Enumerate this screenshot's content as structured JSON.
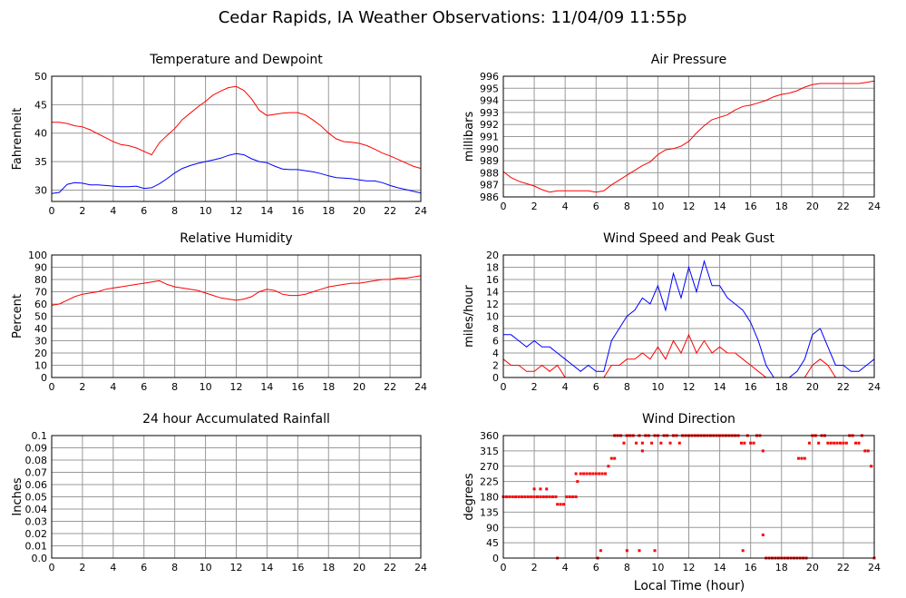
{
  "title": "Cedar Rapids, IA Weather Observations: 11/04/09 11:55p",
  "colors": {
    "red": "#ff0000",
    "blue": "#0000ff",
    "grid": "#999999",
    "frame": "#000000"
  },
  "x_axis_label": "Local Time (hour)",
  "chart_data": [
    {
      "id": "temp",
      "type": "line",
      "title": "Temperature and Dewpoint",
      "xlabel": "",
      "ylabel": "Fahrenheit",
      "xlim": [
        0,
        24
      ],
      "ylim": [
        28,
        50
      ],
      "xticks": [
        0,
        2,
        4,
        6,
        8,
        10,
        12,
        14,
        16,
        18,
        20,
        22,
        24
      ],
      "yticks": [
        30,
        35,
        40,
        45,
        50
      ],
      "series": [
        {
          "color": "#ff0000",
          "x": [
            0,
            0.5,
            1,
            1.5,
            2,
            2.5,
            3,
            3.5,
            4,
            4.5,
            5,
            5.5,
            6,
            6.5,
            7,
            7.5,
            8,
            8.5,
            9,
            9.5,
            10,
            10.5,
            11,
            11.5,
            12,
            12.5,
            13,
            13.5,
            14,
            14.5,
            15,
            15.5,
            16,
            16.5,
            17,
            17.5,
            18,
            18.5,
            19,
            19.5,
            20,
            20.5,
            21,
            21.5,
            22,
            22.5,
            23,
            23.5,
            24
          ],
          "y": [
            41.9,
            41.9,
            41.7,
            41.3,
            41.1,
            40.6,
            39.9,
            39.2,
            38.5,
            38.0,
            37.8,
            37.4,
            36.8,
            36.2,
            38.3,
            39.6,
            40.8,
            42.4,
            43.5,
            44.6,
            45.6,
            46.7,
            47.4,
            48.0,
            48.2,
            47.5,
            46.0,
            44.0,
            43.1,
            43.3,
            43.5,
            43.6,
            43.6,
            43.2,
            42.3,
            41.3,
            40.0,
            39.0,
            38.5,
            38.4,
            38.2,
            37.8,
            37.2,
            36.5,
            36.0,
            35.4,
            34.8,
            34.2,
            33.8
          ]
        },
        {
          "color": "#0000ff",
          "x": [
            0,
            0.5,
            1,
            1.5,
            2,
            2.5,
            3,
            3.5,
            4,
            4.5,
            5,
            5.5,
            6,
            6.5,
            7,
            7.5,
            8,
            8.5,
            9,
            9.5,
            10,
            10.5,
            11,
            11.5,
            12,
            12.5,
            13,
            13.5,
            14,
            14.5,
            15,
            15.5,
            16,
            16.5,
            17,
            17.5,
            18,
            18.5,
            19,
            19.5,
            20,
            20.5,
            21,
            21.5,
            22,
            22.5,
            23,
            23.5,
            24
          ],
          "y": [
            29.4,
            29.6,
            31.0,
            31.3,
            31.2,
            30.9,
            30.9,
            30.8,
            30.7,
            30.6,
            30.6,
            30.7,
            30.3,
            30.4,
            31.1,
            32.0,
            33.0,
            33.8,
            34.3,
            34.7,
            35.0,
            35.3,
            35.6,
            36.1,
            36.4,
            36.2,
            35.5,
            35.0,
            34.8,
            34.2,
            33.7,
            33.6,
            33.6,
            33.4,
            33.2,
            32.9,
            32.5,
            32.2,
            32.1,
            32.0,
            31.8,
            31.6,
            31.6,
            31.3,
            30.8,
            30.4,
            30.1,
            29.8,
            29.5
          ]
        }
      ]
    },
    {
      "id": "pressure",
      "type": "line",
      "title": "Air Pressure",
      "xlabel": "",
      "ylabel": "millibars",
      "xlim": [
        0,
        24
      ],
      "ylim": [
        986,
        996
      ],
      "xticks": [
        0,
        2,
        4,
        6,
        8,
        10,
        12,
        14,
        16,
        18,
        20,
        22,
        24
      ],
      "yticks": [
        986,
        987,
        988,
        989,
        990,
        991,
        992,
        993,
        994,
        995,
        996
      ],
      "series": [
        {
          "color": "#ff0000",
          "x": [
            0,
            0.5,
            1,
            1.5,
            2,
            2.5,
            3,
            3.5,
            4,
            4.5,
            5,
            5.5,
            6,
            6.5,
            7,
            7.5,
            8,
            8.5,
            9,
            9.5,
            10,
            10.5,
            11,
            11.5,
            12,
            12.5,
            13,
            13.5,
            14,
            14.5,
            15,
            15.5,
            16,
            16.5,
            17,
            17.5,
            18,
            18.5,
            19,
            19.5,
            20,
            20.5,
            21,
            21.5,
            22,
            22.5,
            23,
            23.5,
            24
          ],
          "y": [
            988.1,
            987.6,
            987.3,
            987.1,
            986.9,
            986.6,
            986.4,
            986.5,
            986.5,
            986.5,
            986.5,
            986.5,
            986.4,
            986.5,
            987.0,
            987.4,
            987.8,
            988.2,
            988.6,
            988.9,
            989.5,
            989.9,
            990.0,
            990.2,
            990.6,
            991.3,
            991.9,
            992.4,
            992.6,
            992.8,
            993.2,
            993.5,
            993.6,
            993.8,
            994.0,
            994.3,
            994.5,
            994.6,
            994.8,
            995.1,
            995.3,
            995.4,
            995.4,
            995.4,
            995.4,
            995.4,
            995.4,
            995.5,
            995.6
          ]
        }
      ]
    },
    {
      "id": "humidity",
      "type": "line",
      "title": "Relative Humidity",
      "xlabel": "",
      "ylabel": "Percent",
      "xlim": [
        0,
        24
      ],
      "ylim": [
        0,
        100
      ],
      "xticks": [
        0,
        2,
        4,
        6,
        8,
        10,
        12,
        14,
        16,
        18,
        20,
        22,
        24
      ],
      "yticks": [
        0,
        10,
        20,
        30,
        40,
        50,
        60,
        70,
        80,
        90,
        100
      ],
      "series": [
        {
          "color": "#ff0000",
          "x": [
            0,
            0.5,
            1,
            1.5,
            2,
            2.5,
            3,
            3.5,
            4,
            4.5,
            5,
            5.5,
            6,
            6.5,
            7,
            7.5,
            8,
            8.5,
            9,
            9.5,
            10,
            10.5,
            11,
            11.5,
            12,
            12.5,
            13,
            13.5,
            14,
            14.5,
            15,
            15.5,
            16,
            16.5,
            17,
            17.5,
            18,
            18.5,
            19,
            19.5,
            20,
            20.5,
            21,
            21.5,
            22,
            22.5,
            23,
            23.5,
            24
          ],
          "y": [
            59,
            60,
            63,
            66,
            68,
            69,
            70,
            72,
            73,
            74,
            75,
            76,
            77,
            78,
            79,
            76,
            74,
            73,
            72,
            71,
            69,
            67,
            65,
            64,
            63,
            64,
            66,
            70,
            72,
            71,
            68,
            67,
            67,
            68,
            70,
            72,
            74,
            75,
            76,
            77,
            77,
            78,
            79,
            80,
            80,
            81,
            81,
            82,
            83
          ]
        }
      ]
    },
    {
      "id": "wind",
      "type": "line",
      "title": "Wind Speed and Peak Gust",
      "xlabel": "",
      "ylabel": "miles/hour",
      "xlim": [
        0,
        24
      ],
      "ylim": [
        0,
        20
      ],
      "xticks": [
        0,
        2,
        4,
        6,
        8,
        10,
        12,
        14,
        16,
        18,
        20,
        22,
        24
      ],
      "yticks": [
        0,
        2,
        4,
        6,
        8,
        10,
        12,
        14,
        16,
        18,
        20
      ],
      "series": [
        {
          "color": "#0000ff",
          "x": [
            0,
            0.5,
            1,
            1.5,
            2,
            2.5,
            3,
            3.5,
            4,
            4.5,
            5,
            5.5,
            6,
            6.5,
            7,
            7.5,
            8,
            8.5,
            9,
            9.5,
            10,
            10.5,
            11,
            11.5,
            12,
            12.5,
            13,
            13.5,
            14,
            14.5,
            15,
            15.5,
            16,
            16.5,
            17,
            17.5,
            18,
            18.5,
            19,
            19.5,
            20,
            20.5,
            21,
            21.5,
            22,
            22.5,
            23,
            23.5,
            24
          ],
          "y": [
            7,
            7,
            6,
            5,
            6,
            5,
            5,
            4,
            3,
            2,
            1,
            2,
            1,
            1,
            6,
            8,
            10,
            11,
            13,
            12,
            15,
            11,
            17,
            13,
            18,
            14,
            19,
            15,
            15,
            13,
            12,
            11,
            9,
            6,
            2,
            0,
            0,
            0,
            1,
            3,
            7,
            8,
            5,
            2,
            2,
            1,
            1,
            2,
            3
          ]
        },
        {
          "color": "#ff0000",
          "x": [
            0,
            0.5,
            1,
            1.5,
            2,
            2.5,
            3,
            3.5,
            4,
            4.5,
            5,
            5.5,
            6,
            6.5,
            7,
            7.5,
            8,
            8.5,
            9,
            9.5,
            10,
            10.5,
            11,
            11.5,
            12,
            12.5,
            13,
            13.5,
            14,
            14.5,
            15,
            15.5,
            16,
            16.5,
            17,
            17.5,
            18,
            18.5,
            19,
            19.5,
            20,
            20.5,
            21,
            21.5,
            22,
            22.5,
            23,
            23.5,
            24
          ],
          "y": [
            3,
            2,
            2,
            1,
            1,
            2,
            1,
            2,
            0,
            0,
            0,
            0,
            0,
            0,
            2,
            2,
            3,
            3,
            4,
            3,
            5,
            3,
            6,
            4,
            7,
            4,
            6,
            4,
            5,
            4,
            4,
            3,
            2,
            1,
            0,
            0,
            0,
            0,
            0,
            0,
            2,
            3,
            2,
            0,
            0,
            0,
            0,
            0,
            0
          ]
        }
      ]
    },
    {
      "id": "rainfall",
      "type": "line",
      "title": "24 hour Accumulated Rainfall",
      "xlabel": "",
      "ylabel": "Inches",
      "xlim": [
        0,
        24
      ],
      "ylim": [
        0,
        0.1
      ],
      "xticks": [
        0,
        2,
        4,
        6,
        8,
        10,
        12,
        14,
        16,
        18,
        20,
        22,
        24
      ],
      "yticks": [
        0.0,
        0.01,
        0.02,
        0.03,
        0.04,
        0.05,
        0.06,
        0.07,
        0.08,
        0.09,
        0.1
      ],
      "series": [
        {
          "color": "#ff0000",
          "x": [
            0,
            24
          ],
          "y": [
            0,
            0
          ]
        }
      ]
    },
    {
      "id": "direction",
      "type": "scatter",
      "title": "Wind Direction",
      "xlabel": "Local Time (hour)",
      "ylabel": "degrees",
      "xlim": [
        0,
        24
      ],
      "ylim": [
        0,
        360
      ],
      "xticks": [
        0,
        2,
        4,
        6,
        8,
        10,
        12,
        14,
        16,
        18,
        20,
        22,
        24
      ],
      "yticks": [
        0,
        45,
        90,
        135,
        180,
        225,
        270,
        315,
        360
      ],
      "series": [
        {
          "color": "#ff0000",
          "x": [
            0,
            0.2,
            0.4,
            0.6,
            0.8,
            1.0,
            1.2,
            1.4,
            1.6,
            1.8,
            2.0,
            2.2,
            2.4,
            2.6,
            2.8,
            3.0,
            3.2,
            3.4,
            3.5,
            3.7,
            3.9,
            4.1,
            4.3,
            4.5,
            4.7,
            4.8,
            5.0,
            5.2,
            5.4,
            5.6,
            5.8,
            6.0,
            6.2,
            6.4,
            6.6,
            6.8,
            7.0,
            7.2,
            7.4,
            7.6,
            7.8,
            8.0,
            8.2,
            8.4,
            8.6,
            8.8,
            9.0,
            9.2,
            9.4,
            9.6,
            9.8,
            10.0,
            10.2,
            10.4,
            10.6,
            10.8,
            11.0,
            11.2,
            11.4,
            11.6,
            11.8,
            12.0,
            12.2,
            12.4,
            12.6,
            12.8,
            13.0,
            13.2,
            13.4,
            13.6,
            13.8,
            14.0,
            14.2,
            14.4,
            14.6,
            14.8,
            15.0,
            15.2,
            15.4,
            15.6,
            15.8,
            16.0,
            16.2,
            16.4,
            16.6,
            16.8,
            17.0,
            17.2,
            17.4,
            17.6,
            17.8,
            18.0,
            18.2,
            18.4,
            18.6,
            18.8,
            19.0,
            19.2,
            19.4,
            19.6,
            19.8,
            20.0,
            20.2,
            20.4,
            20.6,
            20.8,
            21.0,
            21.2,
            21.4,
            21.6,
            21.8,
            22.0,
            22.2,
            22.4,
            22.6,
            22.8,
            23.0,
            23.2,
            23.4,
            23.6,
            23.8,
            24.0,
            3.5,
            6.1,
            6.3,
            8.0,
            8.8,
            9.8,
            15.5,
            16.8,
            8.0,
            9.0,
            2.0,
            2.4,
            2.8,
            4.7,
            7.2,
            19.1,
            19.3,
            19.5
          ],
          "y": [
            180,
            180,
            180,
            180,
            180,
            180,
            180,
            180,
            180,
            180,
            180,
            180,
            180,
            180,
            180,
            180,
            180,
            180,
            158,
            158,
            158,
            180,
            180,
            180,
            248,
            225,
            248,
            248,
            248,
            248,
            248,
            248,
            248,
            248,
            248,
            270,
            293,
            360,
            360,
            360,
            338,
            360,
            360,
            360,
            338,
            360,
            338,
            360,
            360,
            338,
            360,
            360,
            338,
            360,
            360,
            338,
            360,
            360,
            338,
            360,
            360,
            360,
            360,
            360,
            360,
            360,
            360,
            360,
            360,
            360,
            360,
            360,
            360,
            360,
            360,
            360,
            360,
            360,
            338,
            338,
            360,
            338,
            338,
            360,
            360,
            315,
            0,
            0,
            0,
            0,
            0,
            0,
            0,
            0,
            0,
            0,
            0,
            0,
            0,
            0,
            338,
            360,
            360,
            338,
            360,
            360,
            338,
            338,
            338,
            338,
            338,
            338,
            338,
            360,
            360,
            338,
            338,
            360,
            315,
            315,
            270,
            0,
            0,
            0,
            22,
            22,
            22,
            22,
            22,
            68,
            360,
            315,
            203,
            203,
            203,
            180,
            293,
            293,
            293,
            293
          ]
        }
      ]
    }
  ]
}
